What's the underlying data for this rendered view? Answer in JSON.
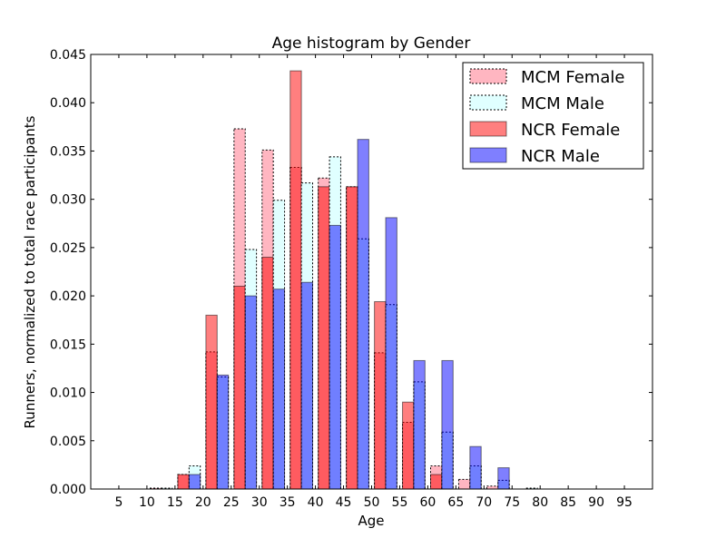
{
  "chart_data": {
    "type": "bar",
    "title": "Age histogram by Gender",
    "xlabel": "Age",
    "ylabel": "Runners, normalized to total race participants",
    "xlim": [
      0,
      100
    ],
    "ylim": [
      0,
      0.045
    ],
    "xticks": [
      5,
      10,
      15,
      20,
      25,
      30,
      35,
      40,
      45,
      50,
      55,
      60,
      65,
      70,
      75,
      80,
      85,
      90,
      95
    ],
    "yticks": [
      0.0,
      0.005,
      0.01,
      0.015,
      0.02,
      0.025,
      0.03,
      0.035,
      0.04,
      0.045
    ],
    "ytick_labels": [
      "0.000",
      "0.005",
      "0.010",
      "0.015",
      "0.020",
      "0.025",
      "0.030",
      "0.035",
      "0.040",
      "0.045"
    ],
    "bin_starts": [
      10,
      15,
      20,
      25,
      30,
      35,
      40,
      45,
      50,
      55,
      60,
      65,
      70,
      75,
      80,
      85,
      90
    ],
    "legend_position": "top-right",
    "grid": false,
    "series": [
      {
        "name": "MCM Female",
        "style": "dashed-outline",
        "color": "#ffb6c1",
        "values": [
          0.0001,
          0.0015,
          0.0142,
          0.0373,
          0.0351,
          0.0333,
          0.0322,
          0.0313,
          0.0141,
          0.0069,
          0.0024,
          0.001,
          0.0003,
          0.0,
          0.0,
          0.0,
          0.0
        ]
      },
      {
        "name": "MCM Male",
        "style": "dashed-outline",
        "color": "#e0ffff",
        "values": [
          0.0001,
          0.0024,
          0.0116,
          0.0248,
          0.0299,
          0.0317,
          0.0344,
          0.0259,
          0.0191,
          0.0111,
          0.0059,
          0.0024,
          0.0009,
          0.0001,
          0.0,
          0.0,
          0.0
        ]
      },
      {
        "name": "NCR Female",
        "style": "solid",
        "color": "#ff0000",
        "values": [
          0.0,
          0.0015,
          0.018,
          0.021,
          0.024,
          0.0433,
          0.0313,
          0.0313,
          0.0194,
          0.009,
          0.0015,
          0.0,
          0.0,
          0.0,
          0.0,
          0.0,
          0.0
        ]
      },
      {
        "name": "NCR Male",
        "style": "solid",
        "color": "#0000ff",
        "values": [
          0.0,
          0.0015,
          0.0118,
          0.02,
          0.0207,
          0.0214,
          0.0273,
          0.0362,
          0.0281,
          0.0133,
          0.0133,
          0.0044,
          0.0022,
          0.0,
          0.0,
          0.0,
          0.0
        ]
      }
    ]
  }
}
